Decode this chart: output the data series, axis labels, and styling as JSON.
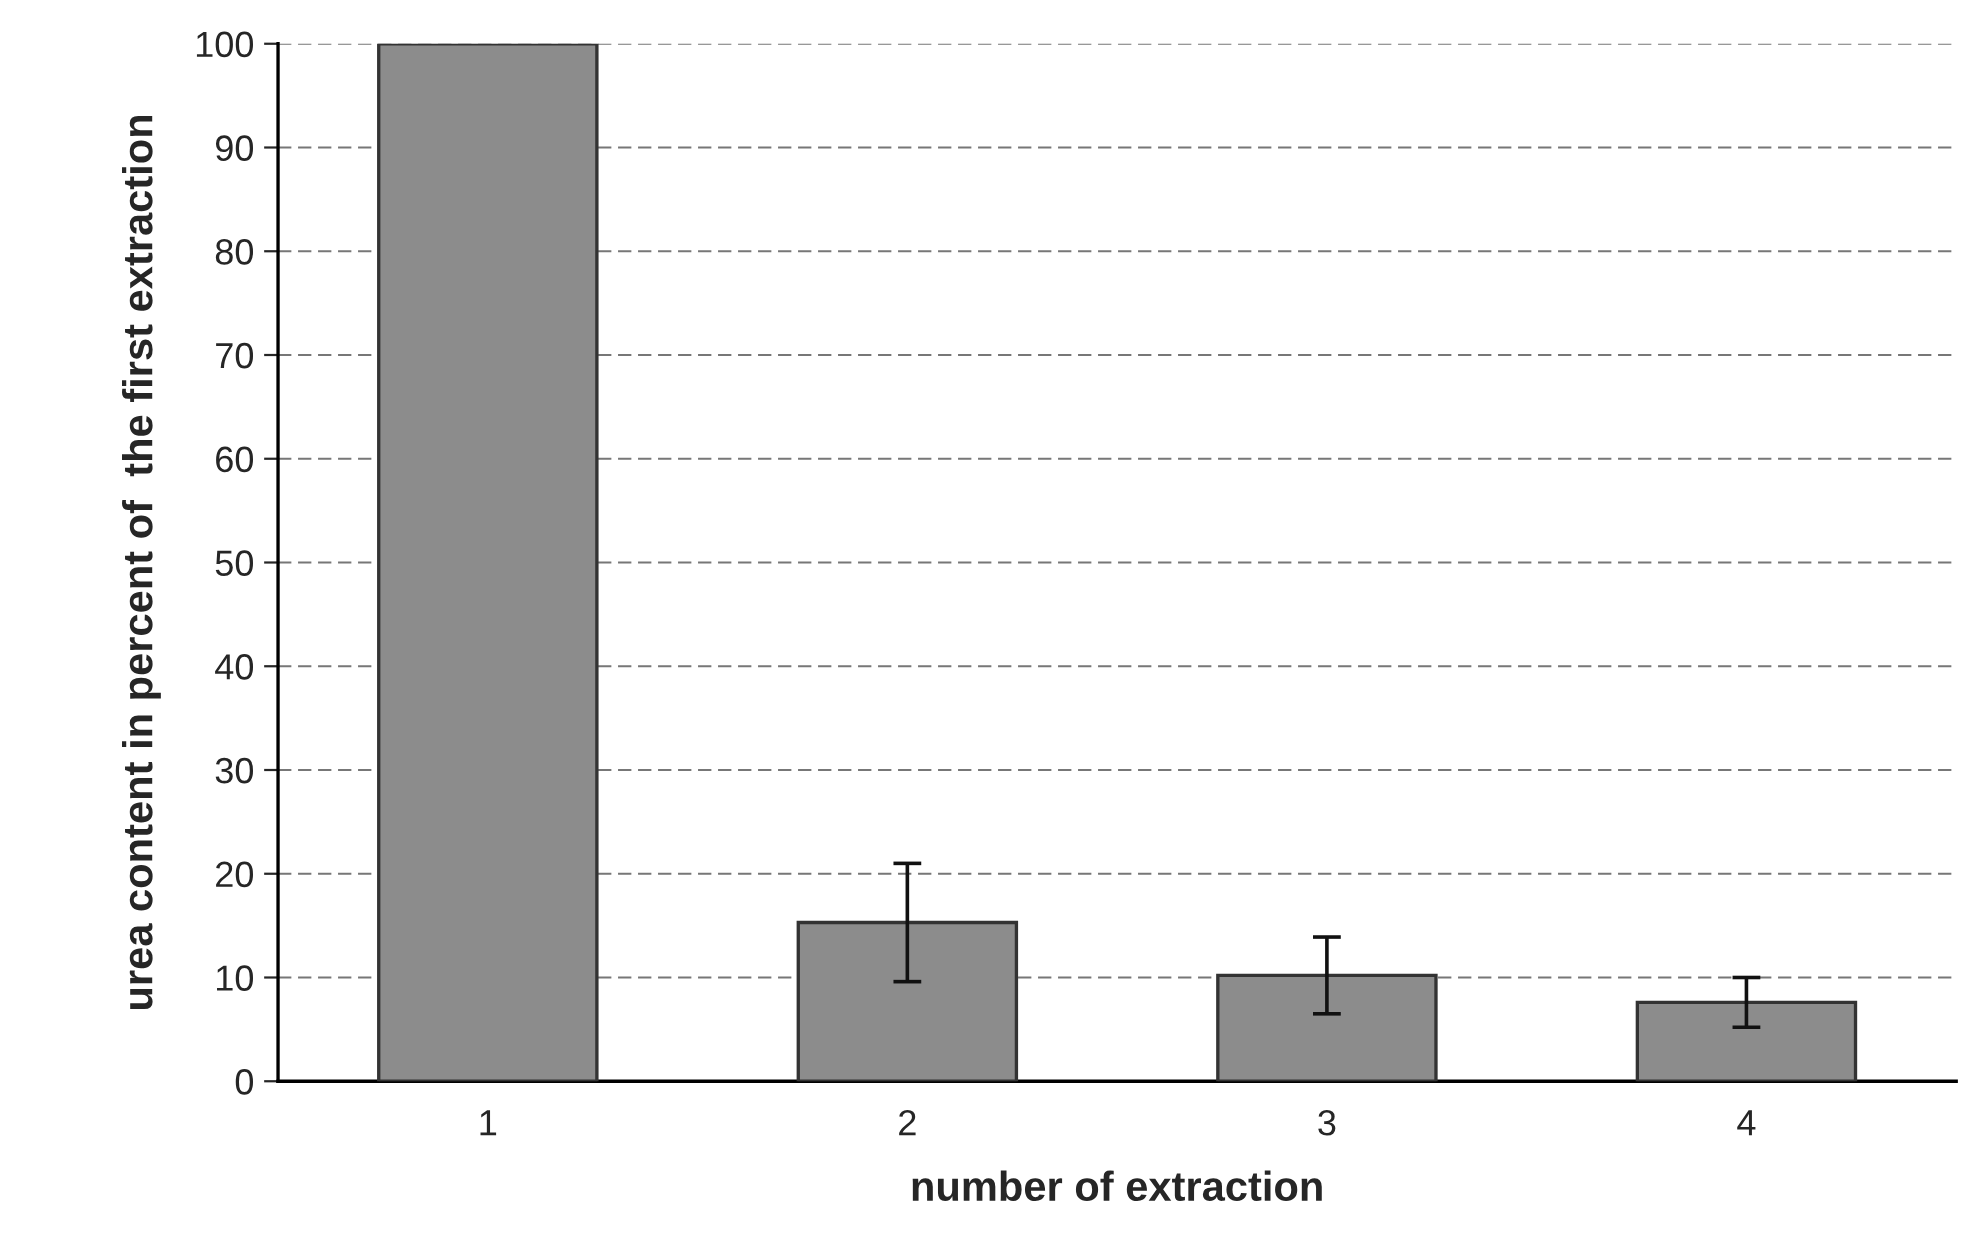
{
  "chart_data": {
    "type": "bar",
    "xlabel": "number of extraction",
    "ylabel": "urea content in percent of  the first extraction",
    "categories": [
      "1",
      "2",
      "3",
      "4"
    ],
    "values": [
      100,
      15.3,
      10.2,
      7.6
    ],
    "errors": [
      null,
      5.7,
      3.7,
      2.4
    ],
    "color": "#8c8c8c",
    "ylim": [
      0,
      100
    ],
    "yticks": [
      0,
      10,
      20,
      30,
      40,
      50,
      60,
      70,
      80,
      90,
      100
    ],
    "grid": "y"
  }
}
